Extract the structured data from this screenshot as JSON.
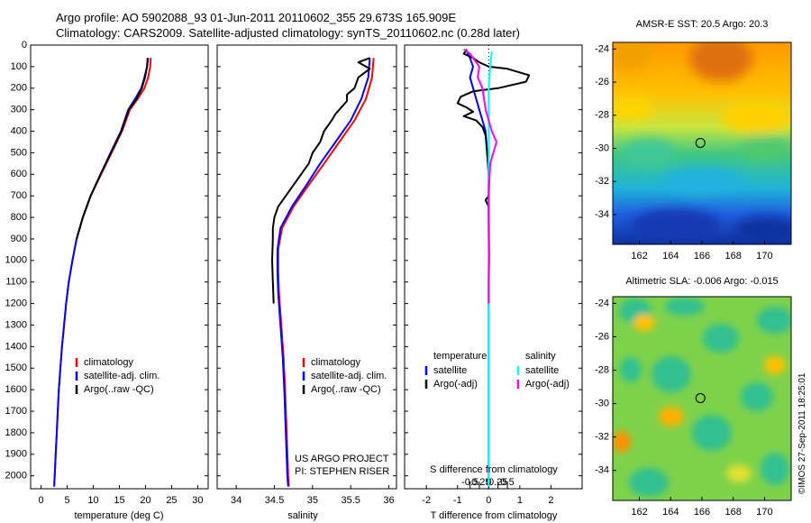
{
  "header": {
    "line1": "Argo profile: AO 5902088_93 01-Jun-2011 20110602_355 29.673S 165.909E",
    "line2": "Climatology: CARS2009. Satellite-adjusted climatology: synTS_20110602.nc (0.28d later)"
  },
  "colors": {
    "climatology": "#ff0000",
    "satellite": "#0000ff",
    "argo": "#000000",
    "sat_salinity": "#00ffff",
    "argo_salinity": "#ff00ff"
  },
  "chart_data": [
    {
      "id": "temperature",
      "type": "line",
      "xlabel": "temperature (deg C)",
      "ylabel": "",
      "xlim": [
        -2,
        32
      ],
      "ylim": [
        2060,
        0
      ],
      "xticks": [
        0,
        5,
        10,
        15,
        20,
        25,
        30
      ],
      "yticks": [
        0,
        100,
        200,
        300,
        400,
        500,
        600,
        700,
        800,
        900,
        1000,
        1100,
        1200,
        1300,
        1400,
        1500,
        1600,
        1700,
        1800,
        1900,
        2000
      ],
      "legend": [
        "climatology",
        "satellite-adj. clim.",
        "Argo(..raw -QC)"
      ],
      "series": [
        {
          "name": "climatology",
          "color": "climatology",
          "points": [
            [
              21,
              60
            ],
            [
              20.9,
              100
            ],
            [
              20.5,
              150
            ],
            [
              19.8,
              200
            ],
            [
              18.5,
              250
            ],
            [
              17,
              300
            ],
            [
              15.5,
              400
            ],
            [
              13.5,
              500
            ],
            [
              11.5,
              600
            ],
            [
              9.5,
              700
            ],
            [
              8,
              800
            ],
            [
              6.8,
              900
            ],
            [
              6,
              1000
            ],
            [
              5.3,
              1100
            ],
            [
              4.8,
              1200
            ],
            [
              4.4,
              1300
            ],
            [
              4,
              1400
            ],
            [
              3.7,
              1500
            ],
            [
              3.4,
              1600
            ],
            [
              3.2,
              1700
            ],
            [
              3,
              1800
            ],
            [
              2.8,
              1900
            ],
            [
              2.6,
              2000
            ],
            [
              2.5,
              2050
            ]
          ]
        },
        {
          "name": "satellite-adj. clim.",
          "color": "satellite",
          "points": [
            [
              20.5,
              60
            ],
            [
              20.3,
              100
            ],
            [
              19.8,
              150
            ],
            [
              19.2,
              200
            ],
            [
              18,
              250
            ],
            [
              16.7,
              300
            ],
            [
              15.3,
              400
            ],
            [
              13.3,
              500
            ],
            [
              11.4,
              600
            ],
            [
              9.5,
              700
            ],
            [
              8,
              800
            ],
            [
              6.8,
              900
            ],
            [
              6,
              1000
            ],
            [
              5.3,
              1100
            ],
            [
              4.8,
              1200
            ],
            [
              4.4,
              1300
            ],
            [
              4,
              1400
            ],
            [
              3.7,
              1500
            ],
            [
              3.4,
              1600
            ],
            [
              3.2,
              1700
            ],
            [
              3,
              1800
            ],
            [
              2.8,
              1900
            ],
            [
              2.6,
              2000
            ],
            [
              2.5,
              2050
            ]
          ]
        },
        {
          "name": "Argo(..raw -QC)",
          "color": "argo",
          "points": [
            [
              20.4,
              60
            ],
            [
              20.3,
              100
            ],
            [
              19.9,
              150
            ],
            [
              19.3,
              200
            ],
            [
              18.3,
              250
            ],
            [
              16.8,
              300
            ],
            [
              15.4,
              400
            ],
            [
              13.4,
              500
            ],
            [
              11.4,
              600
            ],
            [
              9.5,
              700
            ],
            [
              8,
              800
            ],
            [
              6.8,
              900
            ]
          ]
        }
      ]
    },
    {
      "id": "salinity",
      "type": "line",
      "xlabel": "salinity",
      "xlim": [
        33.75,
        36.1
      ],
      "ylim": [
        2060,
        0
      ],
      "xticks": [
        34,
        34.5,
        35,
        35.5,
        36
      ],
      "xticklabels": [
        "34",
        "34.5",
        "35",
        "35.5",
        "36"
      ],
      "legend": [
        "climatology",
        "satellite-adj. clim.",
        "Argo(..raw -QC)"
      ],
      "annotation": [
        "US ARGO PROJECT",
        "PI: STEPHEN RISER"
      ],
      "series": [
        {
          "name": "climatology",
          "color": "climatology",
          "points": [
            [
              35.8,
              60
            ],
            [
              35.78,
              150
            ],
            [
              35.7,
              250
            ],
            [
              35.55,
              350
            ],
            [
              35.35,
              450
            ],
            [
              35.15,
              550
            ],
            [
              34.95,
              650
            ],
            [
              34.75,
              750
            ],
            [
              34.6,
              850
            ],
            [
              34.55,
              950
            ],
            [
              34.55,
              1050
            ],
            [
              34.56,
              1150
            ],
            [
              34.58,
              1250
            ],
            [
              34.6,
              1350
            ],
            [
              34.62,
              1450
            ],
            [
              34.64,
              1600
            ],
            [
              34.66,
              1800
            ],
            [
              34.68,
              2000
            ],
            [
              34.69,
              2050
            ]
          ]
        },
        {
          "name": "satellite-adj. clim.",
          "color": "satellite",
          "points": [
            [
              35.75,
              60
            ],
            [
              35.73,
              150
            ],
            [
              35.64,
              250
            ],
            [
              35.5,
              350
            ],
            [
              35.3,
              450
            ],
            [
              35.1,
              550
            ],
            [
              34.92,
              650
            ],
            [
              34.73,
              750
            ],
            [
              34.58,
              850
            ],
            [
              34.54,
              950
            ],
            [
              34.54,
              1050
            ],
            [
              34.55,
              1150
            ],
            [
              34.57,
              1250
            ],
            [
              34.59,
              1350
            ],
            [
              34.61,
              1450
            ],
            [
              34.63,
              1600
            ],
            [
              34.65,
              1800
            ],
            [
              34.67,
              2000
            ],
            [
              34.68,
              2050
            ]
          ]
        },
        {
          "name": "Argo(..raw -QC)",
          "color": "argo",
          "points": [
            [
              35.75,
              60
            ],
            [
              35.6,
              80
            ],
            [
              35.75,
              110
            ],
            [
              35.6,
              150
            ],
            [
              35.55,
              200
            ],
            [
              35.45,
              230
            ],
            [
              35.45,
              260
            ],
            [
              35.3,
              320
            ],
            [
              35.25,
              350
            ],
            [
              35.15,
              400
            ],
            [
              35.1,
              450
            ],
            [
              35.0,
              500
            ],
            [
              34.95,
              550
            ],
            [
              34.85,
              600
            ],
            [
              34.75,
              650
            ],
            [
              34.65,
              700
            ],
            [
              34.55,
              750
            ],
            [
              34.5,
              800
            ],
            [
              34.48,
              850
            ],
            [
              34.48,
              900
            ],
            [
              34.47,
              1000
            ],
            [
              34.48,
              1100
            ],
            [
              34.49,
              1200
            ]
          ]
        }
      ]
    },
    {
      "id": "difference",
      "type": "line",
      "xlabel": "T difference from climatology",
      "xlabel_top": "S difference from climatology",
      "xlim": [
        -2.7,
        3
      ],
      "ylim": [
        2060,
        0
      ],
      "xticks": [
        -2,
        -1,
        0,
        1,
        2
      ],
      "xticklabels": [
        "-2",
        "-1",
        "0",
        "1",
        "2"
      ],
      "sticks": [
        -0.5,
        -0.25,
        0,
        0.25,
        0.5
      ],
      "sticklabels": [
        "-0.5",
        "-0.25",
        "0",
        "0.25",
        "0.5"
      ],
      "legend_headers": [
        "temperature",
        "salinity"
      ],
      "legend": [
        "satellite",
        "Argo(-adj)",
        "satellite",
        "Argo(-adj)"
      ],
      "series": [
        {
          "name": "T satellite",
          "color": "satellite",
          "points": [
            [
              -0.7,
              30
            ],
            [
              -0.6,
              60
            ],
            [
              -0.5,
              100
            ],
            [
              -0.6,
              150
            ],
            [
              -0.5,
              200
            ],
            [
              -0.3,
              300
            ],
            [
              -0.1,
              400
            ],
            [
              -0.05,
              500
            ],
            [
              0,
              600
            ],
            [
              0,
              800
            ],
            [
              0,
              1000
            ],
            [
              0,
              2050
            ]
          ]
        },
        {
          "name": "T Argo(-adj)",
          "color": "argo",
          "points": [
            [
              -0.7,
              20
            ],
            [
              -0.8,
              40
            ],
            [
              -0.5,
              60
            ],
            [
              -0.3,
              80
            ],
            [
              0,
              100
            ],
            [
              0.6,
              110
            ],
            [
              1.3,
              140
            ],
            [
              1.2,
              170
            ],
            [
              0.3,
              200
            ],
            [
              -0.5,
              215
            ],
            [
              -0.9,
              240
            ],
            [
              -1.0,
              270
            ],
            [
              -0.7,
              290
            ],
            [
              -0.5,
              310
            ],
            [
              -0.8,
              330
            ],
            [
              -0.4,
              350
            ],
            [
              -0.2,
              380
            ],
            [
              -0.1,
              420
            ],
            [
              -0.05,
              500
            ],
            [
              0,
              600
            ],
            [
              0,
              700
            ],
            [
              -0.1,
              720
            ],
            [
              0,
              750
            ],
            [
              0,
              900
            ]
          ]
        },
        {
          "name": "S satellite",
          "color": "sat_salinity",
          "points": [
            [
              0.1,
              30
            ],
            [
              0.05,
              100
            ],
            [
              0,
              200
            ],
            [
              0,
              400
            ],
            [
              0,
              600
            ],
            [
              0,
              1000
            ],
            [
              0,
              2050
            ]
          ]
        },
        {
          "name": "S Argo(-adj)",
          "color": "argo_salinity",
          "points": [
            [
              -0.8,
              20
            ],
            [
              -0.6,
              40
            ],
            [
              -0.5,
              60
            ],
            [
              -0.3,
              100
            ],
            [
              -0.35,
              150
            ],
            [
              -0.2,
              200
            ],
            [
              -0.1,
              300
            ],
            [
              0.1,
              400
            ],
            [
              0.25,
              450
            ],
            [
              0.15,
              500
            ],
            [
              0.05,
              550
            ],
            [
              0,
              700
            ],
            [
              0.02,
              1000
            ],
            [
              0,
              1100
            ],
            [
              0,
              1200
            ]
          ]
        }
      ]
    },
    {
      "id": "sst_map",
      "type": "heatmap",
      "title": "AMSR-E SST: 20.5 Argo: 20.3",
      "xlim": [
        160.3,
        171.7
      ],
      "ylim": [
        -35.8,
        -23.6
      ],
      "xticks": [
        162,
        164,
        166,
        168,
        170
      ],
      "yticks": [
        -24,
        -26,
        -28,
        -30,
        -32,
        -34
      ],
      "marker": [
        165.9,
        -29.67
      ]
    },
    {
      "id": "sla_map",
      "type": "heatmap",
      "title": "Altimetric SLA: -0.006 Argo: -0.015",
      "xlim": [
        160.3,
        171.7
      ],
      "ylim": [
        -35.8,
        -23.6
      ],
      "xticks": [
        162,
        164,
        166,
        168,
        170
      ],
      "yticks": [
        -24,
        -26,
        -28,
        -30,
        -32,
        -34
      ],
      "marker": [
        165.9,
        -29.67
      ]
    }
  ],
  "footer": {
    "credit": "©IMOS 27-Sep-2011 18:25:01"
  }
}
